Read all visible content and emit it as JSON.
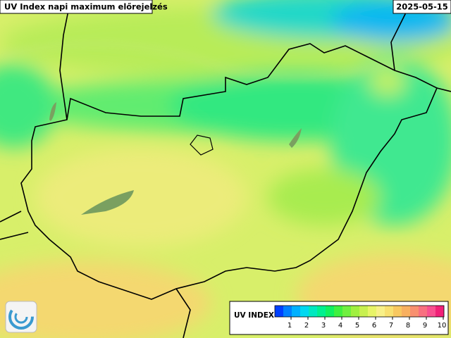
{
  "header": {
    "title": "UV Index napi maximum előrejelzés",
    "date": "2025-05-15"
  },
  "legend": {
    "label": "UV INDEX",
    "colors": [
      "#0040ff",
      "#0080ff",
      "#00b0ff",
      "#00d8f0",
      "#00e8c0",
      "#00f090",
      "#10f060",
      "#40f040",
      "#70f040",
      "#a0f040",
      "#c8f050",
      "#e8f468",
      "#f8f088",
      "#f8e070",
      "#f8c860",
      "#f8b060",
      "#f89070",
      "#f87080",
      "#f85090",
      "#f02078"
    ],
    "ticks": [
      1,
      2,
      3,
      4,
      5,
      6,
      7,
      8,
      9,
      10
    ]
  }
}
